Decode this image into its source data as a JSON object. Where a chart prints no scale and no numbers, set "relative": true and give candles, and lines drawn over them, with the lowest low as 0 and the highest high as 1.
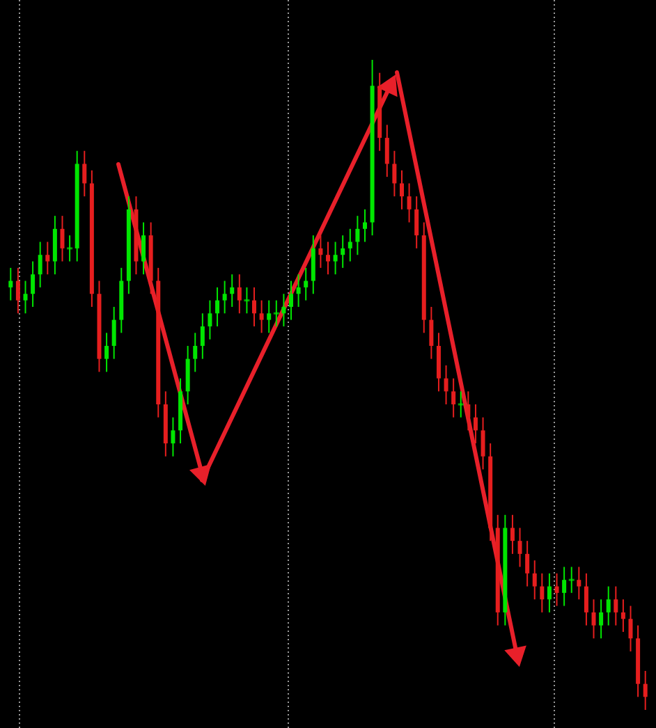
{
  "chart_data": {
    "type": "candlestick",
    "relative": true,
    "categories": [
      null,
      null,
      null,
      null,
      null,
      null,
      null,
      null,
      null,
      null,
      null,
      null,
      null,
      null,
      null,
      null,
      null,
      null,
      null,
      null,
      null,
      null,
      null,
      null,
      null,
      null,
      null,
      null,
      null,
      null,
      null,
      null,
      null,
      null,
      null,
      null,
      null,
      null,
      null,
      null,
      null,
      null,
      null,
      null,
      null,
      null,
      null,
      null,
      null,
      null,
      null,
      null,
      null,
      null,
      null,
      null,
      null,
      null,
      null,
      null,
      null,
      null,
      null,
      null,
      null,
      null,
      null,
      null,
      null,
      null,
      null,
      null,
      null,
      null,
      null,
      null,
      null,
      null,
      null,
      null,
      null,
      null,
      null,
      null,
      null,
      null,
      null
    ],
    "ohlc": [
      [
        0.65,
        0.68,
        0.63,
        0.66
      ],
      [
        0.66,
        0.68,
        0.61,
        0.63
      ],
      [
        0.63,
        0.66,
        0.61,
        0.64
      ],
      [
        0.64,
        0.69,
        0.62,
        0.67
      ],
      [
        0.67,
        0.72,
        0.65,
        0.7
      ],
      [
        0.7,
        0.72,
        0.67,
        0.69
      ],
      [
        0.69,
        0.76,
        0.67,
        0.74
      ],
      [
        0.74,
        0.76,
        0.69,
        0.71
      ],
      [
        0.71,
        0.73,
        0.69,
        0.71
      ],
      [
        0.71,
        0.86,
        0.69,
        0.84
      ],
      [
        0.84,
        0.86,
        0.79,
        0.81
      ],
      [
        0.81,
        0.83,
        0.62,
        0.64
      ],
      [
        0.64,
        0.66,
        0.52,
        0.54
      ],
      [
        0.54,
        0.58,
        0.52,
        0.56
      ],
      [
        0.56,
        0.62,
        0.54,
        0.6
      ],
      [
        0.6,
        0.68,
        0.58,
        0.66
      ],
      [
        0.66,
        0.79,
        0.64,
        0.77
      ],
      [
        0.77,
        0.79,
        0.67,
        0.69
      ],
      [
        0.69,
        0.75,
        0.67,
        0.73
      ],
      [
        0.73,
        0.75,
        0.64,
        0.66
      ],
      [
        0.66,
        0.68,
        0.45,
        0.47
      ],
      [
        0.47,
        0.49,
        0.39,
        0.41
      ],
      [
        0.41,
        0.45,
        0.39,
        0.43
      ],
      [
        0.43,
        0.51,
        0.41,
        0.49
      ],
      [
        0.49,
        0.56,
        0.47,
        0.54
      ],
      [
        0.54,
        0.58,
        0.52,
        0.56
      ],
      [
        0.56,
        0.61,
        0.54,
        0.59
      ],
      [
        0.59,
        0.63,
        0.57,
        0.61
      ],
      [
        0.61,
        0.65,
        0.59,
        0.63
      ],
      [
        0.63,
        0.66,
        0.61,
        0.64
      ],
      [
        0.64,
        0.67,
        0.62,
        0.65
      ],
      [
        0.65,
        0.67,
        0.61,
        0.63
      ],
      [
        0.63,
        0.65,
        0.61,
        0.63
      ],
      [
        0.63,
        0.65,
        0.59,
        0.61
      ],
      [
        0.61,
        0.63,
        0.58,
        0.6
      ],
      [
        0.6,
        0.63,
        0.58,
        0.61
      ],
      [
        0.61,
        0.63,
        0.59,
        0.61
      ],
      [
        0.61,
        0.64,
        0.59,
        0.62
      ],
      [
        0.62,
        0.66,
        0.6,
        0.64
      ],
      [
        0.64,
        0.67,
        0.62,
        0.65
      ],
      [
        0.65,
        0.68,
        0.63,
        0.66
      ],
      [
        0.66,
        0.73,
        0.64,
        0.71
      ],
      [
        0.71,
        0.73,
        0.68,
        0.7
      ],
      [
        0.7,
        0.72,
        0.67,
        0.69
      ],
      [
        0.69,
        0.72,
        0.67,
        0.7
      ],
      [
        0.7,
        0.73,
        0.68,
        0.71
      ],
      [
        0.71,
        0.74,
        0.69,
        0.72
      ],
      [
        0.72,
        0.76,
        0.7,
        0.74
      ],
      [
        0.74,
        0.77,
        0.72,
        0.75
      ],
      [
        0.75,
        1.0,
        0.73,
        0.96
      ],
      [
        0.96,
        0.98,
        0.86,
        0.88
      ],
      [
        0.88,
        0.9,
        0.82,
        0.84
      ],
      [
        0.84,
        0.86,
        0.79,
        0.81
      ],
      [
        0.81,
        0.83,
        0.77,
        0.79
      ],
      [
        0.79,
        0.81,
        0.75,
        0.77
      ],
      [
        0.77,
        0.79,
        0.71,
        0.73
      ],
      [
        0.73,
        0.75,
        0.58,
        0.6
      ],
      [
        0.6,
        0.62,
        0.54,
        0.56
      ],
      [
        0.56,
        0.58,
        0.49,
        0.51
      ],
      [
        0.51,
        0.53,
        0.47,
        0.49
      ],
      [
        0.49,
        0.51,
        0.45,
        0.47
      ],
      [
        0.47,
        0.49,
        0.45,
        0.47
      ],
      [
        0.47,
        0.49,
        0.43,
        0.45
      ],
      [
        0.45,
        0.47,
        0.41,
        0.43
      ],
      [
        0.43,
        0.45,
        0.37,
        0.39
      ],
      [
        0.39,
        0.41,
        0.26,
        0.28
      ],
      [
        0.28,
        0.3,
        0.13,
        0.15
      ],
      [
        0.15,
        0.3,
        0.13,
        0.28
      ],
      [
        0.28,
        0.3,
        0.24,
        0.26
      ],
      [
        0.26,
        0.28,
        0.22,
        0.24
      ],
      [
        0.24,
        0.26,
        0.19,
        0.21
      ],
      [
        0.21,
        0.23,
        0.17,
        0.19
      ],
      [
        0.19,
        0.21,
        0.15,
        0.17
      ],
      [
        0.17,
        0.21,
        0.15,
        0.19
      ],
      [
        0.19,
        0.21,
        0.16,
        0.18
      ],
      [
        0.18,
        0.22,
        0.16,
        0.2
      ],
      [
        0.2,
        0.22,
        0.18,
        0.2
      ],
      [
        0.2,
        0.22,
        0.17,
        0.19
      ],
      [
        0.19,
        0.21,
        0.13,
        0.15
      ],
      [
        0.15,
        0.17,
        0.11,
        0.13
      ],
      [
        0.13,
        0.17,
        0.11,
        0.15
      ],
      [
        0.15,
        0.19,
        0.13,
        0.17
      ],
      [
        0.17,
        0.19,
        0.13,
        0.15
      ],
      [
        0.15,
        0.17,
        0.12,
        0.14
      ],
      [
        0.14,
        0.16,
        0.09,
        0.11
      ],
      [
        0.11,
        0.13,
        0.02,
        0.04
      ],
      [
        0.04,
        0.06,
        0.0,
        0.02
      ]
    ]
  }
}
